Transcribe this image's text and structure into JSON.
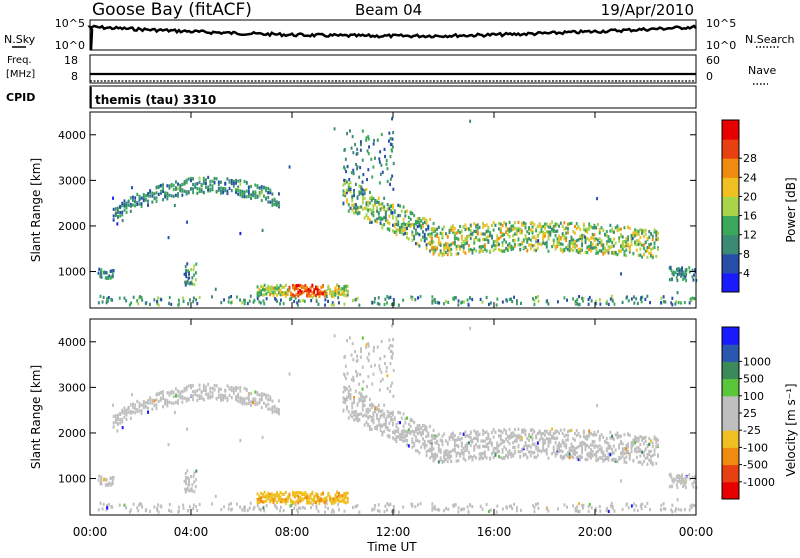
{
  "header": {
    "station": "Goose Bay (fitACF)",
    "beam": "Beam 04",
    "date": "19/Apr/2010"
  },
  "strips": {
    "nsky_label": "N.Sky",
    "nsky_ticks": [
      "10^5",
      "10^0"
    ],
    "nsearch_label": "N.Search",
    "nsearch_ticks": [
      "10^5",
      "10^0"
    ],
    "freq_label": "Freq.",
    "freq_unit": "[MHz]",
    "freq_ticks": [
      "18",
      "8"
    ],
    "nave_label": "Nave",
    "nave_ticks": [
      "60",
      "0"
    ],
    "cpid_label": "CPID",
    "cpid_text": "themis (tau) 3310"
  },
  "colors": {
    "power": [
      "#1a1aff",
      "#274ea8",
      "#3b8a74",
      "#3aa85c",
      "#a8d44a",
      "#f0c020",
      "#f08a10",
      "#e84010",
      "#e80000"
    ],
    "velocity": [
      "#1a1aff",
      "#2a58b0",
      "#3a8a5a",
      "#5ac63a",
      "#bfbfbf",
      "#bfbfbf",
      "#f0c020",
      "#f08a10",
      "#e84010",
      "#e80000"
    ],
    "ground_scatter": "#bfbfbf"
  },
  "chart_data": [
    {
      "type": "heatmap",
      "name": "power",
      "ylabel": "Slant Range [km]",
      "yticks": [
        1000,
        2000,
        3000,
        4000
      ],
      "ylim": [
        200,
        4500
      ],
      "xlim": [
        0,
        24
      ],
      "xticks": [
        0,
        4,
        8,
        12,
        16,
        20,
        24
      ],
      "colorbar_label": "Power [dB]",
      "colorbar_ticks": [
        "4",
        "8",
        "12",
        "16",
        "20",
        "24",
        "28"
      ],
      "scatter_regions": [
        {
          "t": [
            0.8,
            7.5
          ],
          "range_center": [
            2300,
            2600
          ],
          "range_peak": 2850,
          "level": 0.35
        },
        {
          "t": [
            6.5,
            10.2
          ],
          "range_center": [
            550,
            550
          ],
          "level": 0.8
        },
        {
          "t": [
            10.0,
            13.5
          ],
          "range_center": [
            2600,
            1700
          ],
          "level": 0.5
        },
        {
          "t": [
            13.5,
            22.5
          ],
          "range_center": [
            1650,
            1750
          ],
          "level": 0.55
        },
        {
          "t": [
            0.1,
            24.0
          ],
          "range_center": [
            300,
            300
          ],
          "level": 0.3
        },
        {
          "t": [
            23.0,
            24.0
          ],
          "range_center": [
            900,
            900
          ],
          "level": 0.3
        }
      ]
    },
    {
      "type": "heatmap",
      "name": "velocity",
      "ylabel": "Slant Range [km]",
      "yticks": [
        1000,
        2000,
        3000,
        4000
      ],
      "ylim": [
        200,
        4500
      ],
      "xlim": [
        0,
        24
      ],
      "xticks": [
        0,
        4,
        8,
        12,
        16,
        20,
        24
      ],
      "xticklabels": [
        "00:00",
        "04:00",
        "08:00",
        "12:00",
        "16:00",
        "20:00",
        "00:00"
      ],
      "xlabel": "Time UT",
      "colorbar_label": "Velocity [m s⁻¹]",
      "colorbar_ticks": [
        "1000",
        "500",
        "100",
        "25",
        "-25",
        "-100",
        "-500",
        "-1000"
      ],
      "note": "mostly ground scatter (grey); orange near 08:00 at ~600 km"
    }
  ]
}
